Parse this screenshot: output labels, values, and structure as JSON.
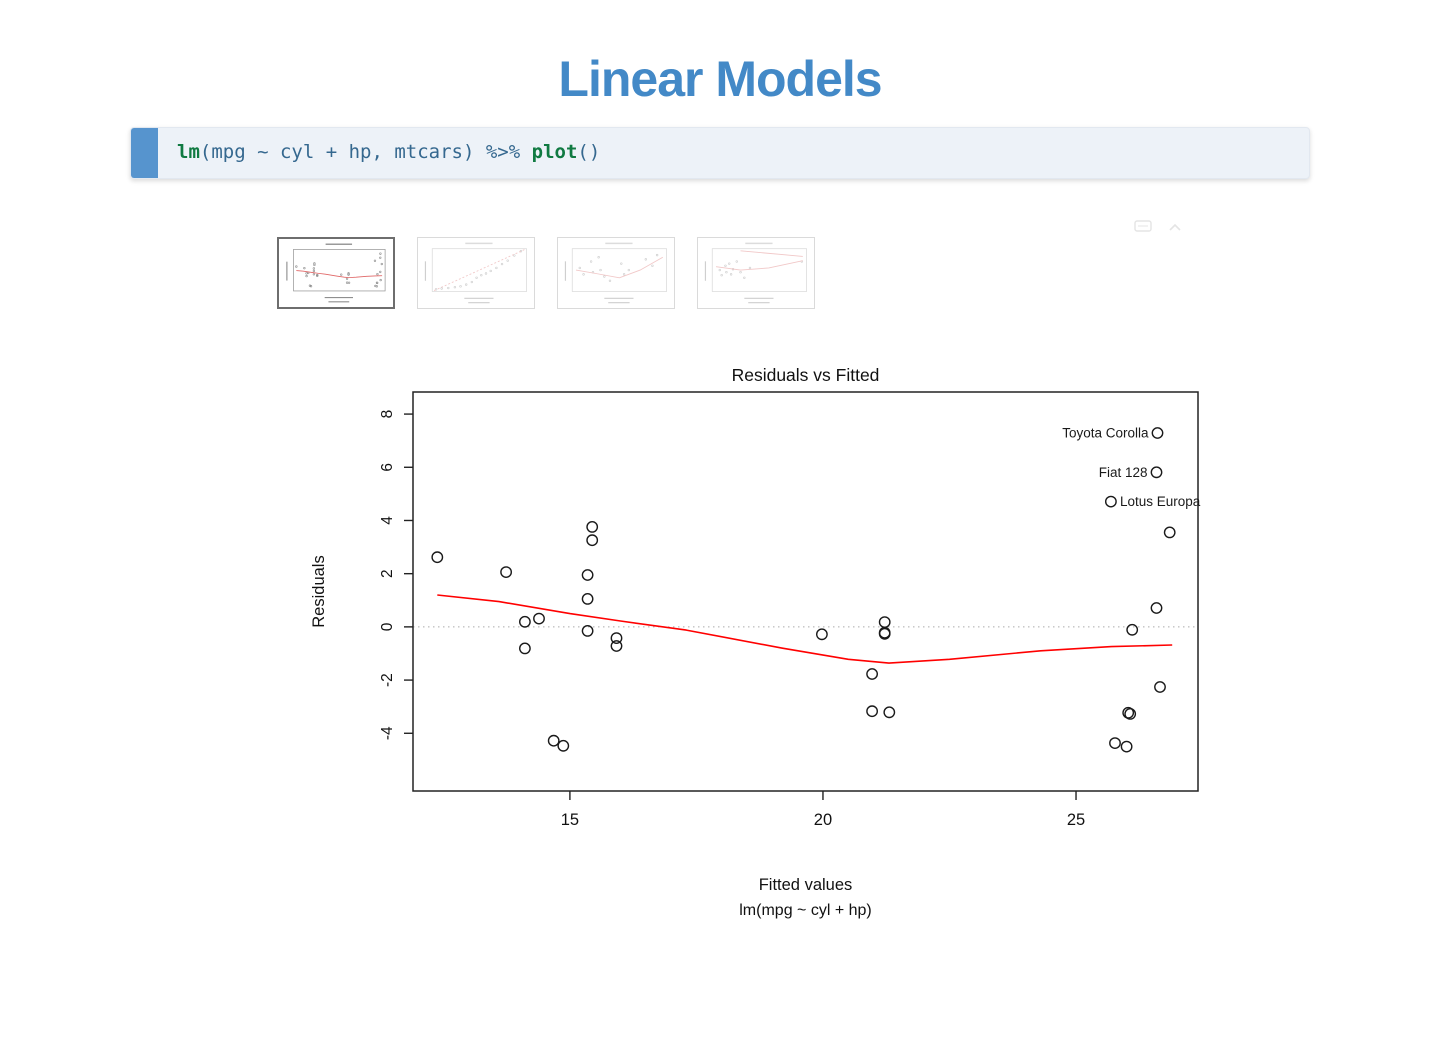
{
  "header": {
    "title": "Linear Models",
    "color": "#4389c7"
  },
  "code_block": {
    "accent_color": "#5694ce",
    "background": "#edf2f8",
    "keyword_color": "#107a42",
    "code_color": "#35688f",
    "tokens": [
      {
        "text": "lm",
        "style": "keyword"
      },
      {
        "text": "(mpg ~ cyl + hp, mtcars) %>% ",
        "style": "code"
      },
      {
        "text": "plot",
        "style": "keyword"
      },
      {
        "text": "()",
        "style": "code"
      }
    ]
  },
  "mini_toolbar": {
    "icons": [
      {
        "name": "panel-icon"
      },
      {
        "name": "chevron-up-icon"
      }
    ]
  },
  "thumbnails": {
    "selected_index": 0,
    "lefts": [
      277,
      417,
      557,
      697
    ],
    "items": [
      {
        "label": "Residuals vs Fitted thumbnail",
        "sketch": {
          "use_main": true
        }
      },
      {
        "label": "Normal Q-Q thumbnail",
        "sketch": {
          "dots": [
            [
              0.04,
              0.95
            ],
            [
              0.1,
              0.93
            ],
            [
              0.17,
              0.92
            ],
            [
              0.24,
              0.9
            ],
            [
              0.3,
              0.88
            ],
            [
              0.36,
              0.84
            ],
            [
              0.42,
              0.78
            ],
            [
              0.47,
              0.68
            ],
            [
              0.52,
              0.62
            ],
            [
              0.57,
              0.58
            ],
            [
              0.62,
              0.52
            ],
            [
              0.68,
              0.45
            ],
            [
              0.74,
              0.36
            ],
            [
              0.8,
              0.28
            ],
            [
              0.87,
              0.16
            ],
            [
              0.94,
              0.06
            ]
          ],
          "line": [
            [
              0.02,
              0.98
            ],
            [
              0.98,
              0.02
            ]
          ],
          "line_dashed": true
        }
      },
      {
        "label": "Scale-Location thumbnail",
        "sketch": {
          "dots": [
            [
              0.08,
              0.45
            ],
            [
              0.12,
              0.6
            ],
            [
              0.2,
              0.3
            ],
            [
              0.22,
              0.55
            ],
            [
              0.28,
              0.2
            ],
            [
              0.3,
              0.5
            ],
            [
              0.34,
              0.65
            ],
            [
              0.4,
              0.75
            ],
            [
              0.52,
              0.35
            ],
            [
              0.55,
              0.6
            ],
            [
              0.6,
              0.5
            ],
            [
              0.78,
              0.25
            ],
            [
              0.85,
              0.4
            ],
            [
              0.9,
              0.15
            ]
          ],
          "line": [
            [
              0.04,
              0.5
            ],
            [
              0.25,
              0.58
            ],
            [
              0.5,
              0.68
            ],
            [
              0.72,
              0.5
            ],
            [
              0.96,
              0.2
            ]
          ]
        }
      },
      {
        "label": "Residuals vs Leverage thumbnail",
        "sketch": {
          "dots": [
            [
              0.08,
              0.5
            ],
            [
              0.1,
              0.62
            ],
            [
              0.14,
              0.4
            ],
            [
              0.15,
              0.55
            ],
            [
              0.18,
              0.35
            ],
            [
              0.2,
              0.6
            ],
            [
              0.22,
              0.48
            ],
            [
              0.26,
              0.3
            ],
            [
              0.3,
              0.55
            ],
            [
              0.34,
              0.68
            ],
            [
              0.4,
              0.45
            ],
            [
              0.95,
              0.3
            ]
          ],
          "line": [
            [
              0.04,
              0.42
            ],
            [
              0.3,
              0.5
            ],
            [
              0.6,
              0.45
            ],
            [
              0.96,
              0.28
            ]
          ],
          "line2": [
            [
              0.3,
              0.05
            ],
            [
              0.96,
              0.18
            ]
          ]
        }
      }
    ]
  },
  "chart_data": {
    "type": "scatter",
    "title": "Residuals vs Fitted",
    "xlabel": "Fitted values",
    "xlabel2": "lm(mpg ~ cyl + hp)",
    "ylabel": "Residuals",
    "xlim": [
      11.9,
      27.41
    ],
    "ylim": [
      -6.17,
      8.83
    ],
    "x_ticks": [
      15,
      20,
      25
    ],
    "y_ticks": [
      -4,
      -2,
      0,
      2,
      4,
      6,
      8
    ],
    "reference_line_y": 0,
    "grid": false,
    "point_color": "#1a1a1a",
    "smoother_color": "#ff0000",
    "reference_color": "#ababab",
    "points": [
      [
        21.22,
        -0.22
      ],
      [
        21.22,
        -0.26
      ],
      [
        26.07,
        -3.27
      ],
      [
        21.22,
        0.18
      ],
      [
        15.44,
        3.26
      ],
      [
        21.31,
        -3.21
      ],
      [
        14.11,
        0.19
      ],
      [
        26.66,
        -2.26
      ],
      [
        26.03,
        -3.23
      ],
      [
        20.97,
        -1.77
      ],
      [
        20.97,
        -3.17
      ],
      [
        15.35,
        1.05
      ],
      [
        15.35,
        1.95
      ],
      [
        15.35,
        -0.15
      ],
      [
        14.87,
        -4.47
      ],
      [
        14.68,
        -4.28
      ],
      [
        14.39,
        0.31
      ],
      [
        26.59,
        5.81
      ],
      [
        26.85,
        3.55
      ],
      [
        26.61,
        7.29
      ],
      [
        26.0,
        -4.5
      ],
      [
        15.92,
        -0.42
      ],
      [
        15.92,
        -0.72
      ],
      [
        14.11,
        -0.81
      ],
      [
        15.44,
        3.76
      ],
      [
        26.59,
        0.71
      ],
      [
        26.11,
        -0.11
      ],
      [
        25.69,
        4.71
      ],
      [
        13.74,
        2.06
      ],
      [
        19.98,
        -0.28
      ],
      [
        12.38,
        2.62
      ],
      [
        25.77,
        -4.37
      ]
    ],
    "smoother": [
      [
        12.38,
        1.2
      ],
      [
        13.6,
        0.95
      ],
      [
        15.0,
        0.5
      ],
      [
        16.0,
        0.22
      ],
      [
        17.3,
        -0.12
      ],
      [
        19.2,
        -0.8
      ],
      [
        20.5,
        -1.22
      ],
      [
        21.3,
        -1.36
      ],
      [
        22.5,
        -1.22
      ],
      [
        24.3,
        -0.9
      ],
      [
        25.7,
        -0.74
      ],
      [
        26.9,
        -0.68
      ]
    ],
    "labeled_points": [
      {
        "label": "Toyota Corolla",
        "x": 26.61,
        "y": 7.29,
        "side": "left"
      },
      {
        "label": "Fiat 128",
        "x": 26.59,
        "y": 5.81,
        "side": "left"
      },
      {
        "label": "Lotus Europa",
        "x": 25.69,
        "y": 4.71,
        "side": "right"
      }
    ]
  }
}
